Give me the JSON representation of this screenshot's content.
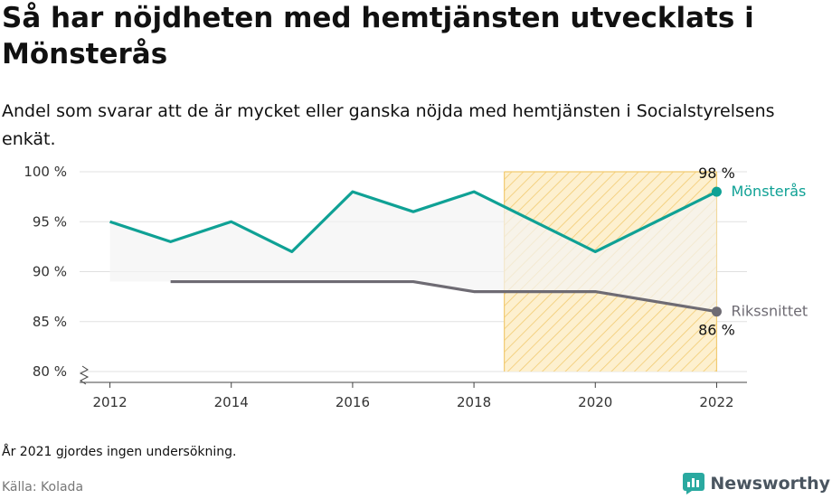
{
  "title": "Så har nöjdheten med hemtjänsten utvecklats i Mönsterås",
  "subtitle": "Andel som svarar att de är mycket eller ganska nöjda med hemtjänsten i Socialstyrelsens enkät.",
  "note": "År 2021 gjordes ingen undersökning.",
  "source": "Källa: Kolada",
  "brand": "Newsworthy",
  "colors": {
    "primary": "#0fa195",
    "average": "#6e6b73",
    "highlight_fill": "#fdf0cf",
    "highlight_hatch": "#f2cb72",
    "band": "#f4f4f4"
  },
  "chart_data": {
    "type": "line",
    "title": "Så har nöjdheten med hemtjänsten utvecklats i Mönsterås",
    "x": [
      2012,
      2013,
      2014,
      2015,
      2016,
      2017,
      2018,
      2020,
      2022
    ],
    "x_ticks": [
      2012,
      2014,
      2016,
      2018,
      2020,
      2022
    ],
    "y_ticks": [
      80,
      85,
      90,
      95,
      100
    ],
    "y_tick_labels": [
      "80 %",
      "85 %",
      "90 %",
      "95 %",
      "100 %"
    ],
    "ylim": [
      80,
      100
    ],
    "xlim": [
      2011.5,
      2022.5
    ],
    "grid": true,
    "highlight_range": [
      2018.5,
      2022
    ],
    "series": [
      {
        "name": "Mönsterås",
        "x": [
          2012,
          2013,
          2014,
          2015,
          2016,
          2017,
          2018,
          2020,
          2022
        ],
        "values": [
          95,
          93,
          95,
          92,
          98,
          96,
          98,
          92,
          98
        ],
        "end_label": "98 %"
      },
      {
        "name": "Rikssnittet",
        "x": [
          2013,
          2014,
          2015,
          2016,
          2017,
          2018,
          2020,
          2022
        ],
        "values": [
          89,
          89,
          89,
          89,
          89,
          88,
          88,
          86
        ],
        "end_label": "86 %"
      }
    ]
  }
}
